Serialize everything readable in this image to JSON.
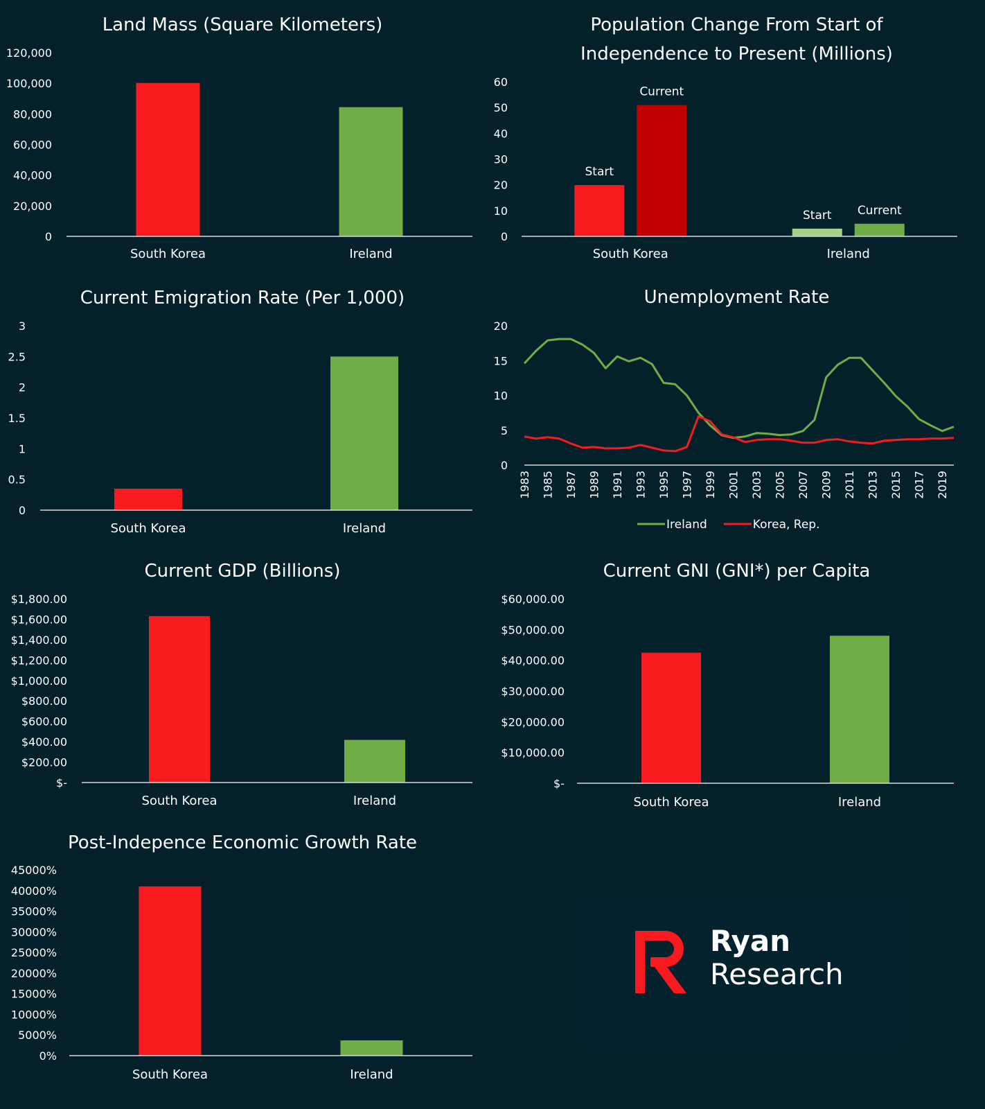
{
  "colors": {
    "background": "#03202b",
    "korea": "#f71b1f",
    "korea_dark": "#c00000",
    "ireland": "#6fad47",
    "ireland_light": "#a8d08d",
    "axis": "#d9d9d9"
  },
  "logo": {
    "line1": "Ryan",
    "line2": "Research",
    "icon": "r-logo-icon"
  },
  "chart_data": [
    {
      "id": "land",
      "type": "bar",
      "title": "Land Mass (Square Kilometers)",
      "categories": [
        "South Korea",
        "Ireland"
      ],
      "values": [
        100210,
        84421
      ],
      "ylim": [
        0,
        120000
      ],
      "ticks": [
        0,
        20000,
        40000,
        60000,
        80000,
        100000,
        120000
      ],
      "tick_labels": [
        "0",
        "20,000",
        "40,000",
        "60,000",
        "80,000",
        "100,000",
        "120,000"
      ],
      "colors": [
        "#f71b1f",
        "#6fad47"
      ],
      "grid": false
    },
    {
      "id": "population",
      "type": "bar",
      "title": "Population Change From Start of Independence to Present (Millions)",
      "title_lines": [
        "Population Change From Start of",
        "Independence to Present (Millions)"
      ],
      "categories": [
        "South Korea",
        "Ireland"
      ],
      "series": [
        {
          "name": "Start",
          "values": [
            19.9,
            3.0
          ]
        },
        {
          "name": "Current",
          "values": [
            51.0,
            4.9
          ]
        }
      ],
      "bar_labels": [
        "Start",
        "Current"
      ],
      "colors": [
        [
          "#f71b1f",
          "#c00000"
        ],
        [
          "#a8d08d",
          "#6fad47"
        ]
      ],
      "ylim": [
        0,
        60
      ],
      "ticks": [
        0,
        10,
        20,
        30,
        40,
        50,
        60
      ],
      "tick_labels": [
        "0",
        "10",
        "20",
        "30",
        "40",
        "50",
        "60"
      ],
      "grid": false
    },
    {
      "id": "emigration",
      "type": "bar",
      "title": "Current Emigration Rate (Per 1,000)",
      "categories": [
        "South Korea",
        "Ireland"
      ],
      "values": [
        0.35,
        2.5
      ],
      "ylim": [
        0,
        3
      ],
      "ticks": [
        0,
        0.5,
        1,
        1.5,
        2,
        2.5,
        3
      ],
      "tick_labels": [
        "0",
        "0.5",
        "1",
        "1.5",
        "2",
        "2.5",
        "3"
      ],
      "colors": [
        "#f71b1f",
        "#6fad47"
      ],
      "grid": false
    },
    {
      "id": "unemployment",
      "type": "line",
      "title": "Unemployment Rate",
      "x": [
        1983,
        1984,
        1985,
        1986,
        1987,
        1988,
        1989,
        1990,
        1991,
        1992,
        1993,
        1994,
        1995,
        1996,
        1997,
        1998,
        1999,
        2000,
        2001,
        2002,
        2003,
        2004,
        2005,
        2006,
        2007,
        2008,
        2009,
        2010,
        2011,
        2012,
        2013,
        2014,
        2015,
        2016,
        2017,
        2018,
        2019,
        2020
      ],
      "x_tick_labels": [
        "1983",
        "1985",
        "1987",
        "1989",
        "1991",
        "1993",
        "1995",
        "1997",
        "1999",
        "2001",
        "2003",
        "2005",
        "2007",
        "2009",
        "2011",
        "2013",
        "2015",
        "2017",
        "2019"
      ],
      "series": [
        {
          "name": "Ireland",
          "color": "#6fad47",
          "values": [
            14.6,
            16.4,
            17.9,
            18.1,
            18.1,
            17.3,
            16.1,
            13.9,
            15.6,
            14.9,
            15.4,
            14.5,
            11.8,
            11.6,
            10.0,
            7.5,
            5.7,
            4.3,
            3.9,
            4.1,
            4.6,
            4.5,
            4.3,
            4.4,
            4.9,
            6.5,
            12.6,
            14.4,
            15.4,
            15.4,
            13.6,
            11.8,
            9.9,
            8.4,
            6.6,
            5.7,
            4.9,
            5.5
          ]
        },
        {
          "name": "Korea, Rep.",
          "color": "#f71b1f",
          "values": [
            4.1,
            3.8,
            4.0,
            3.8,
            3.1,
            2.5,
            2.6,
            2.4,
            2.4,
            2.5,
            2.9,
            2.5,
            2.1,
            2.0,
            2.6,
            7.0,
            6.3,
            4.4,
            4.0,
            3.3,
            3.6,
            3.7,
            3.7,
            3.5,
            3.2,
            3.2,
            3.6,
            3.7,
            3.4,
            3.2,
            3.1,
            3.5,
            3.6,
            3.7,
            3.7,
            3.8,
            3.8,
            3.9
          ]
        }
      ],
      "ylim": [
        0,
        20
      ],
      "ticks": [
        0,
        5,
        10,
        15,
        20
      ],
      "tick_labels": [
        "0",
        "5",
        "10",
        "15",
        "20"
      ],
      "legend": "bottom",
      "grid": false
    },
    {
      "id": "gdp",
      "type": "bar",
      "title": "Current GDP (Billions)",
      "categories": [
        "South Korea",
        "Ireland"
      ],
      "values": [
        1631,
        418
      ],
      "ylim": [
        0,
        1800
      ],
      "ticks": [
        0,
        200,
        400,
        600,
        800,
        1000,
        1200,
        1400,
        1600,
        1800
      ],
      "tick_labels": [
        "$-",
        "$200.00",
        "$400.00",
        "$600.00",
        "$800.00",
        "$1,000.00",
        "$1,200.00",
        "$1,400.00",
        "$1,600.00",
        "$1,800.00"
      ],
      "colors": [
        "#f71b1f",
        "#6fad47"
      ],
      "grid": false
    },
    {
      "id": "gni",
      "type": "bar",
      "title": "Current GNI (GNI*) per Capita",
      "categories": [
        "South Korea",
        "Ireland"
      ],
      "values": [
        42500,
        48000
      ],
      "ylim": [
        0,
        60000
      ],
      "ticks": [
        0,
        10000,
        20000,
        30000,
        40000,
        50000,
        60000
      ],
      "tick_labels": [
        "$-",
        "$10,000.00",
        "$20,000.00",
        "$30,000.00",
        "$40,000.00",
        "$50,000.00",
        "$60,000.00"
      ],
      "colors": [
        "#f71b1f",
        "#6fad47"
      ],
      "grid": false
    },
    {
      "id": "growth",
      "type": "bar",
      "title": "Post-Indepence Economic Growth Rate",
      "categories": [
        "South Korea",
        "Ireland"
      ],
      "values": [
        41000,
        3700
      ],
      "ylim": [
        0,
        45000
      ],
      "ticks": [
        0,
        5000,
        10000,
        15000,
        20000,
        25000,
        30000,
        35000,
        40000,
        45000
      ],
      "tick_labels": [
        "0%",
        "5000%",
        "10000%",
        "15000%",
        "20000%",
        "25000%",
        "30000%",
        "35000%",
        "40000%",
        "45000%"
      ],
      "colors": [
        "#f71b1f",
        "#6fad47"
      ],
      "grid": false
    }
  ]
}
